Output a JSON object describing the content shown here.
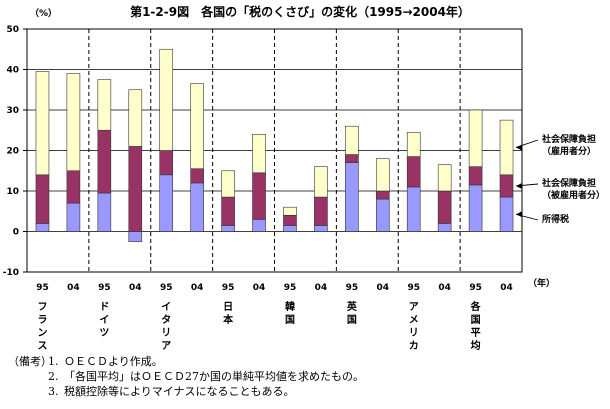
{
  "chart_data": {
    "type": "bar",
    "stacked": true,
    "title": "第1-2-9図　各国の「税のくさび」の変化（1995→2004年）",
    "ylabel": "（%）",
    "xlabel": "（年）",
    "ylim": [
      -10,
      50
    ],
    "yticks": [
      -10,
      0,
      10,
      20,
      30,
      40,
      50
    ],
    "grid": true,
    "colors": {
      "income_tax": "#9999ff",
      "ss_employer": "#993366",
      "ss_employee": "#ffffcc"
    },
    "groups": [
      {
        "name": "フランス",
        "years": [
          "95",
          "04"
        ]
      },
      {
        "name": "ドイツ",
        "years": [
          "95",
          "04"
        ]
      },
      {
        "name": "イタリア",
        "years": [
          "95",
          "04"
        ]
      },
      {
        "name": "日本",
        "years": [
          "95",
          "04"
        ]
      },
      {
        "name": "韓国",
        "years": [
          "95",
          "04"
        ]
      },
      {
        "name": "英国",
        "years": [
          "95",
          "04"
        ]
      },
      {
        "name": "アメリカ",
        "years": [
          "95",
          "04"
        ]
      },
      {
        "name": "各国平均",
        "years": [
          "95",
          "04"
        ]
      }
    ],
    "series": [
      {
        "name": "所得税",
        "color_key": "income_tax",
        "values": [
          2.0,
          7.0,
          9.5,
          -2.5,
          14.0,
          12.0,
          1.5,
          3.0,
          1.5,
          1.5,
          17.0,
          8.0,
          11.0,
          2.0,
          11.5,
          8.5
        ]
      },
      {
        "name": "社会保障負担（被雇用者分）",
        "color_key": "ss_employer",
        "values": [
          12.0,
          8.0,
          15.5,
          21.0,
          6.0,
          3.5,
          7.0,
          11.5,
          2.5,
          7.0,
          2.0,
          2.0,
          7.5,
          8.0,
          4.5,
          5.5
        ]
      },
      {
        "name": "社会保障負担（雇用者分）",
        "color_key": "ss_employee",
        "values": [
          25.5,
          24.0,
          12.5,
          14.0,
          25.0,
          21.0,
          6.5,
          9.5,
          2.0,
          7.5,
          7.0,
          8.0,
          6.0,
          6.5,
          14.0,
          13.5
        ]
      }
    ],
    "legend": [
      {
        "line1": "社会保障負担",
        "line2": "（雇用者分）"
      },
      {
        "line1": "社会保障負担",
        "line2": "（被雇用者分）"
      },
      {
        "line1": "所得税",
        "line2": ""
      }
    ]
  },
  "notes": {
    "lead": "（備考）",
    "items": [
      {
        "num": "1.",
        "text": "ＯＥＣＤより作成。"
      },
      {
        "num": "2.",
        "text": "「各国平均」はＯＥＣＤ27か国の単純平均値を求めたもの。"
      },
      {
        "num": "3.",
        "text": "税額控除等によりマイナスになることもある。"
      }
    ]
  }
}
